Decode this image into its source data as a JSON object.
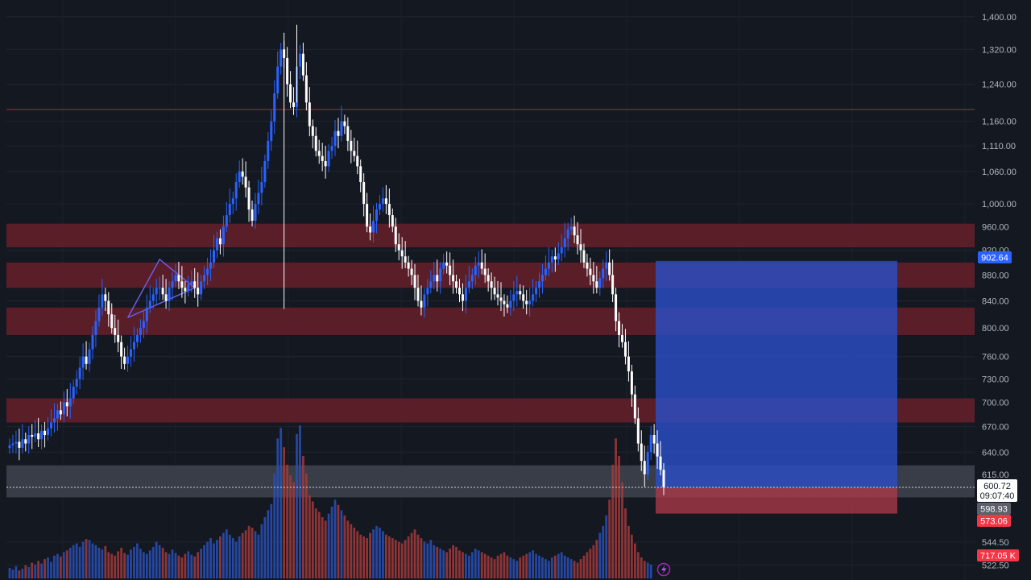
{
  "chart_data": {
    "type": "candlestick",
    "y_scale": "log",
    "ylim": [
      522,
      1420
    ],
    "grid": true,
    "y_ticks": [
      "1,400.00",
      "1,320.00",
      "1,240.00",
      "1,160.00",
      "1,110.00",
      "1,060.00",
      "1,000.00",
      "960.00",
      "920.00",
      "880.00",
      "840.00",
      "800.00",
      "760.00",
      "730.00",
      "700.00",
      "670.00",
      "640.00",
      "615.00",
      "544.50",
      "522.50"
    ],
    "horizontal_lines": [
      {
        "price": 1185,
        "color": "#a8323e"
      }
    ],
    "zones": [
      {
        "low": 925,
        "high": 965,
        "color": "#5e1f2a"
      },
      {
        "low": 860,
        "high": 900,
        "color": "#5e1f2a"
      },
      {
        "low": 790,
        "high": 830,
        "color": "#5e1f2a"
      },
      {
        "low": 675,
        "high": 705,
        "color": "#5e1f2a"
      },
      {
        "low": 590,
        "high": 625,
        "color": "#3a3f4a"
      }
    ],
    "position": {
      "entry": 600.72,
      "target": 902.64,
      "stop": 573.06,
      "profit_color": "#2a4fc9",
      "loss_color": "#b23a4a"
    },
    "triangle": {
      "color": "#6c5ce7"
    },
    "series_close": [
      648,
      650,
      652,
      645,
      655,
      650,
      660,
      658,
      662,
      655,
      665,
      660,
      668,
      675,
      680,
      690,
      685,
      700,
      695,
      705,
      720,
      730,
      745,
      760,
      750,
      770,
      790,
      810,
      830,
      850,
      840,
      820,
      800,
      790,
      780,
      760,
      750,
      760,
      770,
      780,
      790,
      800,
      810,
      830,
      840,
      850,
      860,
      860,
      850,
      840,
      860,
      870,
      880,
      870,
      860,
      855,
      865,
      870,
      860,
      850,
      870,
      880,
      890,
      900,
      920,
      940,
      930,
      960,
      980,
      1000,
      1010,
      1040,
      1060,
      1050,
      1030,
      990,
      970,
      1000,
      1020,
      1040,
      1080,
      1120,
      1160,
      1220,
      1280,
      1320,
      1300,
      1240,
      1200,
      1190,
      1280,
      1310,
      1260,
      1200,
      1150,
      1130,
      1100,
      1090,
      1080,
      1070,
      1100,
      1110,
      1140,
      1130,
      1160,
      1150,
      1120,
      1100,
      1090,
      1070,
      1040,
      1000,
      960,
      950,
      970,
      990,
      1000,
      1010,
      1000,
      980,
      960,
      930,
      920,
      910,
      900,
      890,
      880,
      860,
      840,
      830,
      850,
      860,
      870,
      880,
      870,
      890,
      900,
      895,
      880,
      870,
      860,
      850,
      840,
      860,
      870,
      880,
      895,
      900,
      890,
      880,
      870,
      860,
      850,
      845,
      840,
      835,
      830,
      840,
      850,
      855,
      850,
      840,
      835,
      840,
      850,
      860,
      870,
      880,
      890,
      900,
      910,
      905,
      915,
      925,
      940,
      955,
      960,
      945,
      930,
      920,
      900,
      890,
      880,
      870,
      860,
      875,
      890,
      900,
      880,
      850,
      810,
      790,
      780,
      760,
      740,
      710,
      680,
      650,
      630,
      615,
      640,
      660,
      650,
      635,
      620,
      600.72
    ],
    "volume": [
      12,
      10,
      14,
      9,
      11,
      15,
      13,
      18,
      16,
      20,
      17,
      22,
      24,
      19,
      26,
      28,
      25,
      30,
      32,
      35,
      38,
      40,
      36,
      42,
      45,
      44,
      40,
      38,
      35,
      33,
      37,
      30,
      28,
      26,
      31,
      35,
      29,
      27,
      33,
      36,
      40,
      34,
      30,
      28,
      32,
      36,
      42,
      38,
      35,
      30,
      28,
      33,
      29,
      26,
      24,
      28,
      31,
      27,
      25,
      30,
      34,
      38,
      42,
      46,
      40,
      44,
      48,
      52,
      56,
      50,
      46,
      42,
      48,
      52,
      55,
      60,
      58,
      54,
      50,
      62,
      70,
      78,
      85,
      120,
      160,
      172,
      150,
      130,
      118,
      110,
      165,
      175,
      140,
      120,
      95,
      88,
      80,
      76,
      70,
      66,
      74,
      82,
      90,
      84,
      78,
      72,
      66,
      62,
      58,
      54,
      50,
      48,
      46,
      52,
      56,
      60,
      58,
      54,
      50,
      48,
      46,
      44,
      42,
      40,
      44,
      48,
      52,
      56,
      50,
      46,
      42,
      40,
      44,
      38,
      36,
      34,
      32,
      30,
      34,
      38,
      36,
      32,
      30,
      28,
      26,
      30,
      34,
      32,
      30,
      28,
      26,
      24,
      22,
      26,
      28,
      30,
      26,
      24,
      22,
      20,
      24,
      26,
      28,
      30,
      32,
      28,
      26,
      24,
      22,
      20,
      24,
      26,
      28,
      30,
      26,
      24,
      22,
      20,
      18,
      22,
      26,
      30,
      34,
      38,
      44,
      52,
      60,
      72,
      90,
      130,
      160,
      140,
      110,
      80,
      60,
      50,
      40,
      30,
      24,
      20,
      18,
      16
    ]
  },
  "price_axis": {
    "target_label": "902.64",
    "last_price_label": "600.72",
    "countdown_label": "09:07:40",
    "zone_price_label": "598.93",
    "stop_label": "573.06",
    "volume_label": "717.05 K",
    "last_price_color": "#ffffff",
    "target_color": "#2962ff",
    "stop_color": "#f23645",
    "volume_color": "#f23645"
  },
  "icons": {
    "flash": "lightning-icon"
  }
}
